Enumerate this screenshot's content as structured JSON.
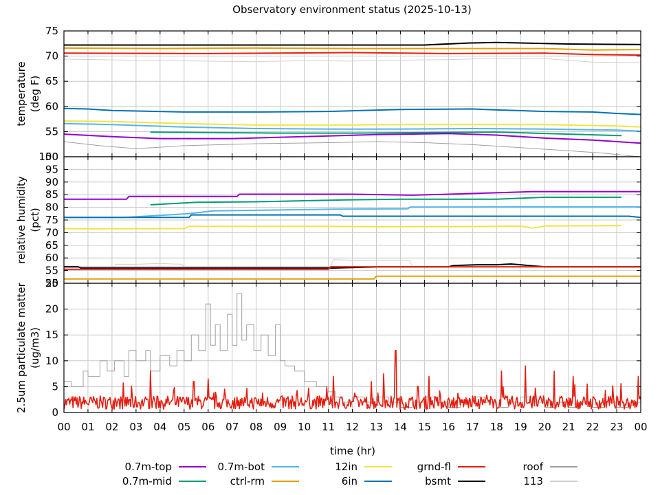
{
  "chart_data": {
    "type": "line",
    "title": "Observatory environment status (2025-10-13)",
    "xlabel": "time (hr)",
    "x_range": [
      0,
      24
    ],
    "x_ticks": [
      "00",
      "01",
      "02",
      "03",
      "04",
      "05",
      "06",
      "07",
      "08",
      "09",
      "10",
      "11",
      "12",
      "13",
      "14",
      "15",
      "16",
      "17",
      "18",
      "19",
      "20",
      "21",
      "22",
      "23",
      "00"
    ],
    "legend": [
      {
        "name": "0.7m-top",
        "color": "#9400d3"
      },
      {
        "name": "0.7m-mid",
        "color": "#009e73"
      },
      {
        "name": "0.7m-bot",
        "color": "#56b4e9"
      },
      {
        "name": "ctrl-rm",
        "color": "#e69f00"
      },
      {
        "name": "12in",
        "color": "#f0e442"
      },
      {
        "name": "6in",
        "color": "#0072b2"
      },
      {
        "name": "grnd-fl",
        "color": "#e51e10"
      },
      {
        "name": "bsmt",
        "color": "#000000"
      },
      {
        "name": "roof",
        "color": "#a0a0a0"
      },
      {
        "name": "113",
        "color": "#d0d0d0"
      }
    ],
    "panels": [
      {
        "id": "temperature",
        "ylabel1": "temperature",
        "ylabel2": "(deg F)",
        "ylim": [
          50,
          75
        ],
        "yticks": [
          "50",
          "55",
          "60",
          "65",
          "70",
          "75"
        ],
        "series": [
          {
            "name": "bsmt",
            "color": "#000000",
            "width": 2,
            "x": [
              0,
              3,
              6,
              9,
              12,
              15,
              16.8,
              18,
              21,
              24
            ],
            "y": [
              72.2,
              72.2,
              72.2,
              72.2,
              72.2,
              72.2,
              72.6,
              72.7,
              72.4,
              72.3
            ]
          },
          {
            "name": "ctrl-rm",
            "color": "#e69f00",
            "width": 2,
            "x": [
              0,
              4,
              8,
              12,
              16,
              20,
              22,
              24
            ],
            "y": [
              71.6,
              71.5,
              71.6,
              71.5,
              71.5,
              71.5,
              71.2,
              71.3
            ]
          },
          {
            "name": "grnd-fl",
            "color": "#e51e10",
            "width": 2,
            "x": [
              0,
              6,
              12,
              16,
              20,
              22,
              24
            ],
            "y": [
              70.6,
              70.5,
              70.7,
              70.5,
              70.6,
              70.3,
              70.2
            ]
          },
          {
            "name": "113",
            "color": "#d0d0d0",
            "width": 1,
            "x": [
              0,
              4,
              8,
              10,
              12,
              14,
              16,
              18,
              20,
              22,
              24
            ],
            "y": [
              69.4,
              69.1,
              68.9,
              69.1,
              69.0,
              69.2,
              69.3,
              69.6,
              69.5,
              68.8,
              68.7
            ]
          },
          {
            "name": "6in",
            "color": "#0072b2",
            "width": 2,
            "x": [
              0,
              1,
              2,
              5,
              8,
              11,
              14,
              17,
              18,
              20,
              22,
              23,
              24
            ],
            "y": [
              59.6,
              59.5,
              59.2,
              58.9,
              58.9,
              59.0,
              59.4,
              59.5,
              59.3,
              59.0,
              58.9,
              58.6,
              58.4
            ]
          },
          {
            "name": "12in",
            "color": "#f0e442",
            "width": 2,
            "x": [
              0,
              2,
              5,
              8,
              11,
              14,
              17,
              20,
              23,
              24
            ],
            "y": [
              57.1,
              57.0,
              56.6,
              56.3,
              56.3,
              56.4,
              56.4,
              56.4,
              56.1,
              55.9
            ]
          },
          {
            "name": "0.7m-bot",
            "color": "#56b4e9",
            "width": 2,
            "x": [
              0,
              2,
              5,
              8,
              11,
              14,
              17,
              20,
              23,
              24
            ],
            "y": [
              56.6,
              56.4,
              55.9,
              55.6,
              55.5,
              55.5,
              55.6,
              55.5,
              55.3,
              55.1
            ]
          },
          {
            "name": "0.7m-mid",
            "color": "#009e73",
            "width": 2,
            "x": [
              3.6,
              6,
              9,
              12,
              15,
              18,
              21,
              23.2
            ],
            "y": [
              54.9,
              54.8,
              54.7,
              54.7,
              54.8,
              54.9,
              54.5,
              54.2
            ]
          },
          {
            "name": "0.7m-top",
            "color": "#9400d3",
            "width": 2,
            "x": [
              0,
              2,
              4,
              7,
              10,
              13,
              16,
              18,
              20,
              22,
              23,
              24
            ],
            "y": [
              54.5,
              54.0,
              53.6,
              53.6,
              54.0,
              54.4,
              54.6,
              54.3,
              53.7,
              53.3,
              53.0,
              52.7
            ]
          },
          {
            "name": "roof",
            "color": "#a0a0a0",
            "width": 1,
            "x": [
              0,
              1.5,
              3,
              5,
              8,
              11,
              13,
              15,
              17,
              19,
              21,
              22.5,
              23.5,
              24
            ],
            "y": [
              53.0,
              52.2,
              51.6,
              52.2,
              52.6,
              52.8,
              53.0,
              52.8,
              52.4,
              51.8,
              51.2,
              50.7,
              50.2,
              50.0
            ]
          }
        ]
      },
      {
        "id": "humidity",
        "ylabel1": "relative humidity",
        "ylabel2": "(pct)",
        "ylim": [
          50,
          100
        ],
        "yticks": [
          "50",
          "55",
          "60",
          "65",
          "70",
          "75",
          "80",
          "85",
          "90",
          "95",
          "100"
        ],
        "series": [
          {
            "name": "0.7m-top",
            "color": "#9400d3",
            "width": 2,
            "x": [
              0,
              2.6,
              2.7,
              7.2,
              7.3,
              12,
              14.5,
              16,
              19.5,
              24
            ],
            "y": [
              83.2,
              83.2,
              84.3,
              84.3,
              85.2,
              85.2,
              84.8,
              85.2,
              86.2,
              86.2
            ]
          },
          {
            "name": "0.7m-mid",
            "color": "#009e73",
            "width": 2,
            "x": [
              3.6,
              5.5,
              8,
              10,
              12,
              14,
              16,
              18,
              20,
              23.2
            ],
            "y": [
              81.0,
              82.0,
              82.2,
              82.6,
              83.0,
              83.2,
              83.2,
              83.2,
              84.0,
              84.0
            ]
          },
          {
            "name": "0.7m-bot",
            "color": "#56b4e9",
            "width": 2,
            "x": [
              0,
              2.5,
              5.2,
              6.2,
              11.3,
              14.3,
              14.4,
              24
            ],
            "y": [
              76.0,
              76.0,
              77.5,
              78.6,
              79.3,
              79.4,
              80.1,
              80.2
            ]
          },
          {
            "name": "6in",
            "color": "#0072b2",
            "width": 2,
            "x": [
              0,
              5.2,
              5.3,
              11.5,
              11.6,
              23.5,
              24
            ],
            "y": [
              76.0,
              76.0,
              77.0,
              77.0,
              76.5,
              76.5,
              76.0
            ]
          },
          {
            "name": "12in",
            "color": "#f0e442",
            "width": 2,
            "x": [
              0,
              1,
              5,
              5.2,
              10,
              11,
              13,
              15,
              17,
              19,
              19.5,
              20,
              23.2
            ],
            "y": [
              71.6,
              71.5,
              71.6,
              72.5,
              72.5,
              72.5,
              72.3,
              72.4,
              72.4,
              72.6,
              71.8,
              72.6,
              72.8
            ]
          },
          {
            "name": "113",
            "color": "#d0d0d0",
            "width": 1,
            "x": [
              2.1,
              3,
              4,
              4.9,
              5.0,
              11.1,
              11.2,
              12,
              14.4,
              14.5,
              24
            ],
            "y": [
              57.5,
              57.5,
              57.8,
              57.5,
              56.5,
              56.5,
              59.3,
              59.1,
              59.0,
              56.5,
              56.5
            ]
          },
          {
            "name": "roof",
            "color": "#a0a0a0",
            "width": 1,
            "x": [
              0,
              24
            ],
            "y": [
              56.5,
              56.5
            ]
          },
          {
            "name": "bsmt",
            "color": "#000000",
            "width": 2,
            "x": [
              0,
              0.6,
              0.7,
              11,
              11.3,
              13.1,
              16,
              16.2,
              17.2,
              18,
              18.6,
              20,
              24
            ],
            "y": [
              56.5,
              56.5,
              56.0,
              56.0,
              56.0,
              56.5,
              56.5,
              57.0,
              57.3,
              57.3,
              57.6,
              56.5,
              56.5
            ]
          },
          {
            "name": "grnd-fl",
            "color": "#e51e10",
            "width": 2,
            "x": [
              0,
              11,
              11.1,
              24
            ],
            "y": [
              55.5,
              55.5,
              56.5,
              56.5
            ]
          },
          {
            "name": "ctrl-rm",
            "color": "#e69f00",
            "width": 2,
            "x": [
              0,
              12.9,
              13.0,
              24
            ],
            "y": [
              51.7,
              51.7,
              52.8,
              52.8
            ]
          }
        ]
      },
      {
        "id": "pm25",
        "ylabel1": "2.5um particulate matter",
        "ylabel2": "(ug/m3)",
        "ylim": [
          0,
          25
        ],
        "yticks": [
          "0",
          "5",
          "10",
          "15",
          "20",
          "25"
        ],
        "series": [
          {
            "name": "113",
            "color": "#a0a0a0",
            "width": 1,
            "step": true,
            "x": [
              0,
              0.3,
              0.8,
              1,
              1.5,
              1.8,
              2.1,
              2.5,
              2.7,
              3,
              3.4,
              3.6,
              4,
              4.4,
              4.7,
              5,
              5.3,
              5.6,
              5.9,
              6.1,
              6.3,
              6.5,
              6.8,
              7.0,
              7.2,
              7.4,
              7.6,
              7.9,
              8.2,
              8.5,
              8.8,
              9.0,
              9.2,
              9.6,
              10,
              10.5,
              11,
              11.3,
              11.6,
              12,
              12.5,
              13,
              13.5,
              14,
              14.5,
              15,
              15.5,
              16,
              16.5,
              17,
              17.5,
              18,
              18.5,
              19,
              19.5,
              20,
              20.5,
              21,
              21.5,
              22,
              22.5,
              23,
              23.5,
              24
            ],
            "y": [
              6,
              5,
              8,
              7,
              10,
              8,
              10,
              7,
              12,
              10,
              12,
              8,
              11,
              9,
              12,
              10,
              15,
              12,
              21,
              13,
              17,
              12,
              19,
              13,
              23,
              14,
              17,
              12,
              15,
              11,
              17,
              10,
              9,
              8,
              6,
              5,
              4,
              3,
              2,
              3,
              2,
              3,
              2,
              1,
              2,
              3,
              2,
              1,
              2,
              3,
              2,
              1,
              2,
              3,
              2,
              1,
              2,
              1,
              2,
              1,
              2,
              1,
              2,
              1
            ]
          },
          {
            "name": "grnd-fl",
            "color": "#e51e10",
            "width": 1.6,
            "noise": true,
            "base": 1.8,
            "spread": 2.6,
            "spikes": [
              [
                3.6,
                8
              ],
              [
                5.4,
                6
              ],
              [
                6.0,
                6.5
              ],
              [
                11.2,
                7
              ],
              [
                12.8,
                6
              ],
              [
                13.3,
                7.5
              ],
              [
                13.8,
                12
              ],
              [
                15.2,
                7
              ],
              [
                18.2,
                8
              ],
              [
                19.2,
                9
              ],
              [
                20.4,
                8
              ],
              [
                21.2,
                7
              ],
              [
                23.9,
                7
              ]
            ],
            "x": [
              0,
              24
            ],
            "y": [
              2,
              2
            ]
          }
        ]
      }
    ]
  }
}
